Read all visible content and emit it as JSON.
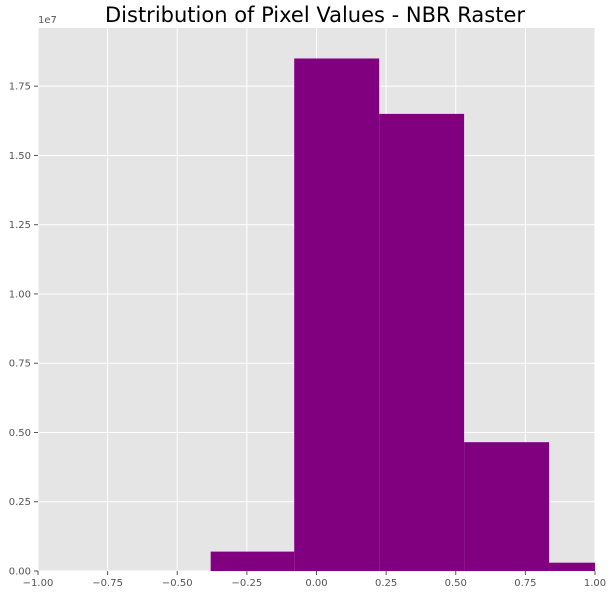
{
  "chart_data": {
    "type": "bar",
    "title": "Distribution of Pixel Values - NBR Raster",
    "xlabel": "",
    "ylabel": "",
    "xlim": [
      -1.0,
      1.0
    ],
    "ylim": [
      0,
      1.96
    ],
    "y_scale_label": "1e7",
    "grid": true,
    "bar_color": "#800080",
    "background_color": "#e5e5e5",
    "grid_color": "#ffffff",
    "bins": [
      {
        "x0": -0.38,
        "x1": -0.08,
        "value": 0.07
      },
      {
        "x0": -0.08,
        "x1": 0.225,
        "value": 1.85
      },
      {
        "x0": 0.225,
        "x1": 0.53,
        "value": 1.65
      },
      {
        "x0": 0.53,
        "x1": 0.835,
        "value": 0.465
      },
      {
        "x0": 0.835,
        "x1": 1.0,
        "value": 0.03
      }
    ],
    "x_ticks": [
      {
        "value": -1.0,
        "label": "−1.00"
      },
      {
        "value": -0.75,
        "label": "−0.75"
      },
      {
        "value": -0.5,
        "label": "−0.50"
      },
      {
        "value": -0.25,
        "label": "−0.25"
      },
      {
        "value": 0.0,
        "label": "0.00"
      },
      {
        "value": 0.25,
        "label": "0.25"
      },
      {
        "value": 0.5,
        "label": "0.50"
      },
      {
        "value": 0.75,
        "label": "0.75"
      },
      {
        "value": 1.0,
        "label": "1.00"
      }
    ],
    "y_ticks": [
      {
        "value": 0.0,
        "label": "0.00"
      },
      {
        "value": 0.25,
        "label": "0.25"
      },
      {
        "value": 0.5,
        "label": "0.50"
      },
      {
        "value": 0.75,
        "label": "0.75"
      },
      {
        "value": 1.0,
        "label": "1.00"
      },
      {
        "value": 1.25,
        "label": "1.25"
      },
      {
        "value": 1.5,
        "label": "1.50"
      },
      {
        "value": 1.75,
        "label": "1.75"
      }
    ]
  }
}
